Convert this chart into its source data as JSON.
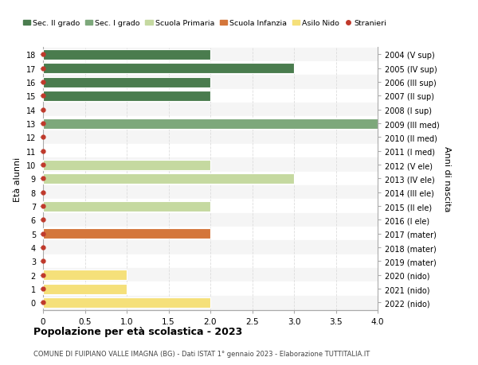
{
  "ages": [
    18,
    17,
    16,
    15,
    14,
    13,
    12,
    11,
    10,
    9,
    8,
    7,
    6,
    5,
    4,
    3,
    2,
    1,
    0
  ],
  "years": [
    "2004 (V sup)",
    "2005 (IV sup)",
    "2006 (III sup)",
    "2007 (II sup)",
    "2008 (I sup)",
    "2009 (III med)",
    "2010 (II med)",
    "2011 (I med)",
    "2012 (V ele)",
    "2013 (IV ele)",
    "2014 (III ele)",
    "2015 (II ele)",
    "2016 (I ele)",
    "2017 (mater)",
    "2018 (mater)",
    "2019 (mater)",
    "2020 (nido)",
    "2021 (nido)",
    "2022 (nido)"
  ],
  "bar_values": [
    2,
    3,
    2,
    2,
    0,
    4,
    0,
    0,
    2,
    3,
    0,
    2,
    0,
    2,
    0,
    0,
    1,
    1,
    2
  ],
  "bar_colors": [
    "#4a7c4e",
    "#4a7c4e",
    "#4a7c4e",
    "#4a7c4e",
    "#4a7c4e",
    "#7da87b",
    "#7da87b",
    "#7da87b",
    "#c5d9a0",
    "#c5d9a0",
    "#c5d9a0",
    "#c5d9a0",
    "#c5d9a0",
    "#d4763b",
    "#d4763b",
    "#d4763b",
    "#f5e07a",
    "#f5e07a",
    "#f5e07a"
  ],
  "stranieri_dots": [
    18,
    17,
    16,
    15,
    14,
    13,
    12,
    11,
    10,
    9,
    8,
    7,
    6,
    5,
    4,
    3,
    2,
    1,
    0
  ],
  "legend_labels": [
    "Sec. II grado",
    "Sec. I grado",
    "Scuola Primaria",
    "Scuola Infanzia",
    "Asilo Nido",
    "Stranieri"
  ],
  "legend_colors": [
    "#4a7c4e",
    "#7da87b",
    "#c5d9a0",
    "#d4763b",
    "#f5e07a",
    "#c0392b"
  ],
  "ylabel_left": "Età alunni",
  "ylabel_right": "Anni di nascita",
  "title": "Popolazione per età scolastica - 2023",
  "subtitle": "COMUNE DI FUIPIANO VALLE IMAGNA (BG) - Dati ISTAT 1° gennaio 2023 - Elaborazione TUTTITALIA.IT",
  "xlim": [
    0,
    4.0
  ],
  "xticks": [
    0,
    0.5,
    1.0,
    1.5,
    2.0,
    2.5,
    3.0,
    3.5,
    4.0
  ],
  "xtick_labels": [
    "0",
    "0.5",
    "1.0",
    "1.5",
    "2.0",
    "2.5",
    "3.0",
    "3.5",
    "4.0"
  ],
  "grid_color": "#dddddd",
  "dot_color": "#c0392b",
  "bar_height": 0.75
}
